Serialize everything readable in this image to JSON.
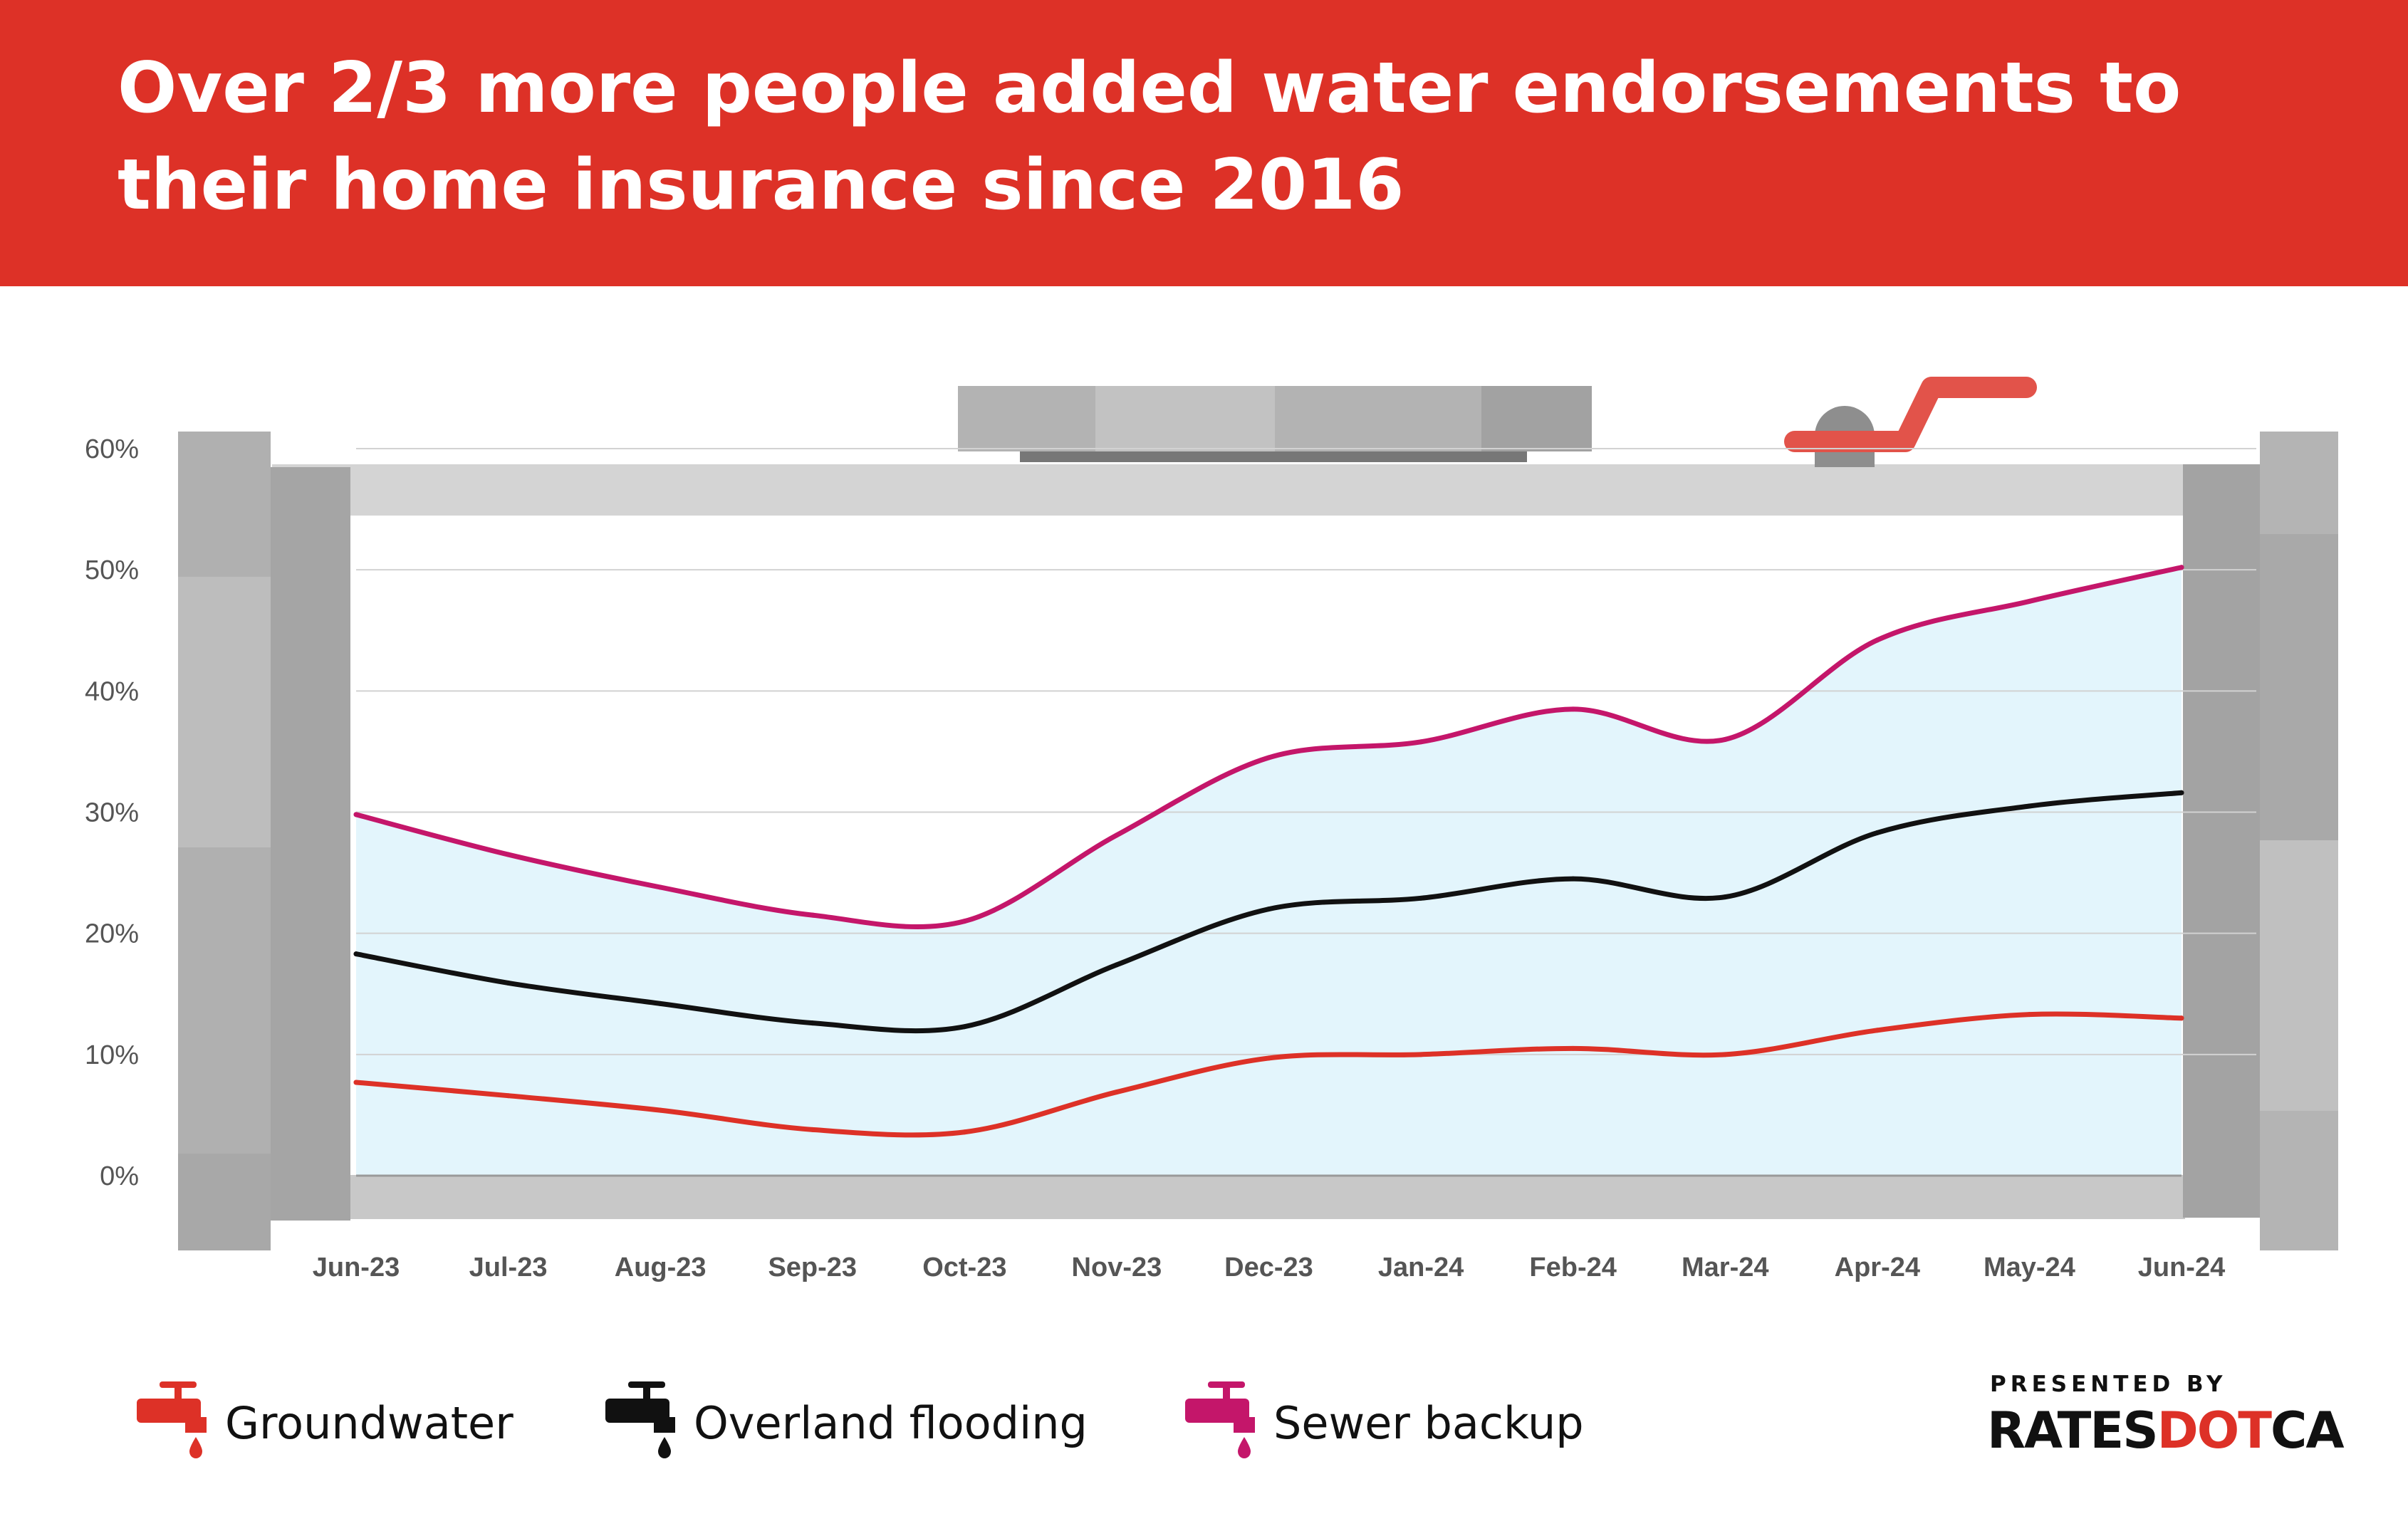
{
  "title": "Over 2/3 more people added water endorsements to their home insurance since 2016",
  "colors": {
    "banner": "#dd3127",
    "groundwater": "#dd3127",
    "overland": "#111111",
    "sewer": "#c4166a",
    "fill": "#e3f5fc"
  },
  "legend": {
    "groundwater": "Groundwater",
    "overland": "Overland flooding",
    "sewer": "Sewer backup",
    "icon": "faucet-icon"
  },
  "branding": {
    "presented_by": "PRESENTED BY",
    "name_part1": "RATES",
    "name_part2": "DOT",
    "name_part3": "CA"
  },
  "chart_data": {
    "type": "line",
    "title": "Over 2/3 more people added water endorsements to their home insurance since 2016",
    "xlabel": "",
    "ylabel": "",
    "categories": [
      "Jun-23",
      "Jul-23",
      "Aug-23",
      "Sep-23",
      "Oct-23",
      "Nov-23",
      "Dec-23",
      "Jan-24",
      "Feb-24",
      "Mar-24",
      "Apr-24",
      "May-24",
      "Jun-24"
    ],
    "ylim": [
      0,
      60
    ],
    "yticks": [
      0,
      10,
      20,
      30,
      40,
      50,
      60
    ],
    "ytick_labels": [
      "0%",
      "10%",
      "20%",
      "30%",
      "40%",
      "50%",
      "60%"
    ],
    "grid": true,
    "legend_position": "bottom",
    "series": [
      {
        "name": "Groundwater",
        "key": "groundwater",
        "values": [
          7.7,
          6.6,
          5.4,
          3.8,
          3.6,
          6.9,
          9.7,
          10.0,
          10.5,
          10.0,
          12.0,
          13.3,
          13.0
        ]
      },
      {
        "name": "Overland flooding",
        "key": "overland",
        "values": [
          18.3,
          15.9,
          14.2,
          12.6,
          12.3,
          17.4,
          22.0,
          22.9,
          24.5,
          23.0,
          28.3,
          30.5,
          31.6
        ]
      },
      {
        "name": "Sewer backup",
        "key": "sewer",
        "values": [
          29.8,
          26.5,
          23.8,
          21.5,
          21.0,
          28.1,
          34.5,
          35.8,
          38.5,
          36.0,
          44.2,
          47.4,
          50.2
        ]
      }
    ]
  }
}
